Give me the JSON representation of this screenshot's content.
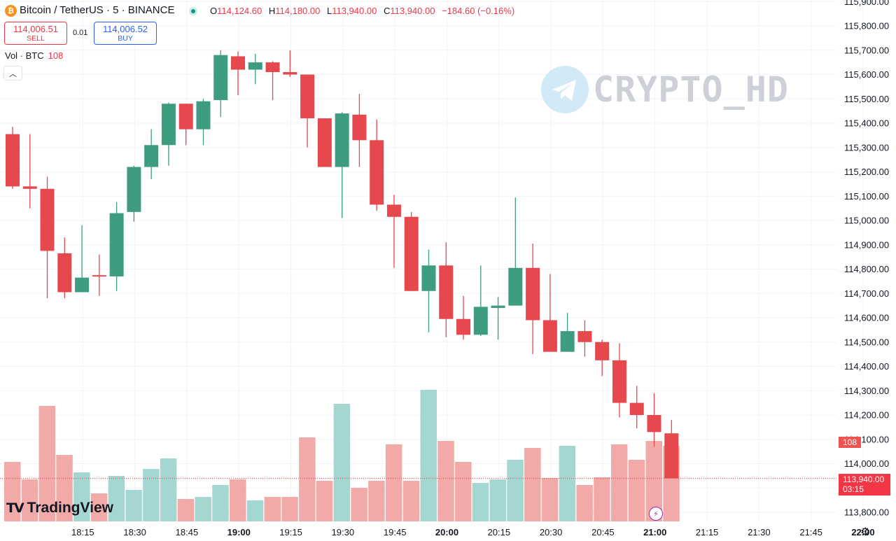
{
  "header": {
    "coin_icon": "bitcoin-icon",
    "title": "Bitcoin / TetherUS · 5 · BINANCE",
    "ohlc": {
      "o_label": "O",
      "o": "114,124.60",
      "h_label": "H",
      "h": "114,180.00",
      "l_label": "L",
      "l": "113,940.00",
      "c_label": "C",
      "c": "113,940.00",
      "change": "−184.60 (−0.16%)"
    }
  },
  "trade": {
    "sell_price": "114,006.51",
    "sell_label": "SELL",
    "spread": "0.01",
    "buy_price": "114,006.52",
    "buy_label": "BUY"
  },
  "volume_legend": {
    "label": "Vol · BTC",
    "value": "108"
  },
  "watermark": {
    "icon": "telegram-icon",
    "text": "CRYPTO_HD"
  },
  "logo": {
    "text": "TradingView"
  },
  "price_labels": {
    "last_volume": "108",
    "last_price": "113,940.00",
    "countdown": "03:15"
  },
  "colors": {
    "up": "#26a69a",
    "down": "#ef5350",
    "up_candle": "#3e9d81",
    "down_candle": "#e5484d",
    "up_volume": "#a4d7d1",
    "down_volume": "#f2aaa9",
    "grid": "#f0f3fa"
  },
  "chart_data": {
    "type": "candlestick",
    "symbol": "Bitcoin / TetherUS",
    "interval": "5",
    "exchange": "BINANCE",
    "y_ticks": [
      "115,900.00",
      "115,800.00",
      "115,700.00",
      "115,600.00",
      "115,500.00",
      "115,400.00",
      "115,300.00",
      "115,200.00",
      "115,100.00",
      "115,000.00",
      "114,900.00",
      "114,800.00",
      "114,700.00",
      "114,600.00",
      "114,500.00",
      "114,400.00",
      "114,300.00",
      "114,200.00",
      "114,100.00",
      "114,000.00",
      "113,900.00",
      "113,800.00"
    ],
    "x_ticks": [
      {
        "label": "18:15",
        "t": 3
      },
      {
        "label": "18:30",
        "t": 6
      },
      {
        "label": "18:45",
        "t": 9
      },
      {
        "label": "19:00",
        "t": 12,
        "bold": true
      },
      {
        "label": "19:15",
        "t": 15
      },
      {
        "label": "19:30",
        "t": 18
      },
      {
        "label": "19:45",
        "t": 21
      },
      {
        "label": "20:00",
        "t": 24,
        "bold": true
      },
      {
        "label": "20:15",
        "t": 27
      },
      {
        "label": "20:30",
        "t": 30
      },
      {
        "label": "20:45",
        "t": 33
      },
      {
        "label": "21:00",
        "t": 36,
        "bold": true
      },
      {
        "label": "21:15",
        "t": 39
      },
      {
        "label": "21:30",
        "t": 42
      },
      {
        "label": "21:45",
        "t": 45
      },
      {
        "label": "22:00",
        "t": 48,
        "bold": true
      }
    ],
    "ylim": [
      113770,
      115925
    ],
    "candles": [
      {
        "t": 0,
        "o": 115355,
        "h": 115385,
        "l": 115130,
        "c": 115140
      },
      {
        "t": 1,
        "o": 115140,
        "h": 115355,
        "l": 115050,
        "c": 115130
      },
      {
        "t": 2,
        "o": 115130,
        "h": 115180,
        "l": 114680,
        "c": 114875
      },
      {
        "t": 3,
        "o": 114865,
        "h": 114930,
        "l": 114680,
        "c": 114705
      },
      {
        "t": 4,
        "o": 114705,
        "h": 114980,
        "l": 114710,
        "c": 114765
      },
      {
        "t": 5,
        "o": 114775,
        "h": 114860,
        "l": 114690,
        "c": 114770
      },
      {
        "t": 6,
        "o": 114770,
        "h": 115075,
        "l": 114710,
        "c": 115030
      },
      {
        "t": 7,
        "o": 115035,
        "h": 115225,
        "l": 114995,
        "c": 115220
      },
      {
        "t": 8,
        "o": 115220,
        "h": 115375,
        "l": 115170,
        "c": 115310
      },
      {
        "t": 9,
        "o": 115310,
        "h": 115485,
        "l": 115225,
        "c": 115480
      },
      {
        "t": 10,
        "o": 115480,
        "h": 115480,
        "l": 115310,
        "c": 115375
      },
      {
        "t": 11,
        "o": 115375,
        "h": 115500,
        "l": 115310,
        "c": 115490
      },
      {
        "t": 12,
        "o": 115495,
        "h": 115700,
        "l": 115425,
        "c": 115680
      },
      {
        "t": 13,
        "o": 115675,
        "h": 115695,
        "l": 115515,
        "c": 115620
      },
      {
        "t": 14,
        "o": 115620,
        "h": 115685,
        "l": 115560,
        "c": 115650
      },
      {
        "t": 15,
        "o": 115650,
        "h": 115655,
        "l": 115495,
        "c": 115610
      },
      {
        "t": 16,
        "o": 115610,
        "h": 115700,
        "l": 115590,
        "c": 115600
      },
      {
        "t": 17,
        "o": 115600,
        "h": 115600,
        "l": 115300,
        "c": 115420
      },
      {
        "t": 18,
        "o": 115420,
        "h": 115420,
        "l": 115220,
        "c": 115220
      },
      {
        "t": 19,
        "o": 115220,
        "h": 115445,
        "l": 115010,
        "c": 115440
      },
      {
        "t": 20,
        "o": 115435,
        "h": 115520,
        "l": 115220,
        "c": 115330
      },
      {
        "t": 21,
        "o": 115330,
        "h": 115415,
        "l": 115040,
        "c": 115065
      },
      {
        "t": 22,
        "o": 115065,
        "h": 115105,
        "l": 114805,
        "c": 115015
      },
      {
        "t": 23,
        "o": 115015,
        "h": 115035,
        "l": 114710,
        "c": 114710
      },
      {
        "t": 24,
        "o": 114710,
        "h": 114880,
        "l": 114540,
        "c": 114815
      },
      {
        "t": 25,
        "o": 114815,
        "h": 114910,
        "l": 114520,
        "c": 114595
      },
      {
        "t": 26,
        "o": 114595,
        "h": 114690,
        "l": 114510,
        "c": 114530
      },
      {
        "t": 27,
        "o": 114530,
        "h": 114815,
        "l": 114525,
        "c": 114645
      },
      {
        "t": 28,
        "o": 114640,
        "h": 114685,
        "l": 114510,
        "c": 114650
      },
      {
        "t": 29,
        "o": 114650,
        "h": 115095,
        "l": 114650,
        "c": 114805
      },
      {
        "t": 30,
        "o": 114805,
        "h": 114905,
        "l": 114450,
        "c": 114590
      },
      {
        "t": 31,
        "o": 114590,
        "h": 114780,
        "l": 114470,
        "c": 114460
      },
      {
        "t": 32,
        "o": 114460,
        "h": 114620,
        "l": 114460,
        "c": 114545
      },
      {
        "t": 33,
        "o": 114545,
        "h": 114590,
        "l": 114440,
        "c": 114500
      },
      {
        "t": 34,
        "o": 114500,
        "h": 114510,
        "l": 114360,
        "c": 114425
      },
      {
        "t": 35,
        "o": 114425,
        "h": 114495,
        "l": 114190,
        "c": 114250
      },
      {
        "t": 36,
        "o": 114250,
        "h": 114320,
        "l": 114145,
        "c": 114200
      },
      {
        "t": 37,
        "o": 114200,
        "h": 114290,
        "l": 114070,
        "c": 114130
      },
      {
        "t": 38,
        "o": 114124.6,
        "h": 114180,
        "l": 113940,
        "c": 113940
      }
    ],
    "volume": [
      85,
      60,
      165,
      95,
      70,
      40,
      65,
      45,
      75,
      90,
      32,
      35,
      52,
      60,
      30,
      35,
      35,
      120,
      58,
      168,
      48,
      58,
      110,
      58,
      188,
      115,
      85,
      55,
      60,
      88,
      105,
      62,
      108,
      52,
      63,
      110,
      88,
      115,
      108
    ],
    "volume_max": 200,
    "last_price": 113940.0
  }
}
